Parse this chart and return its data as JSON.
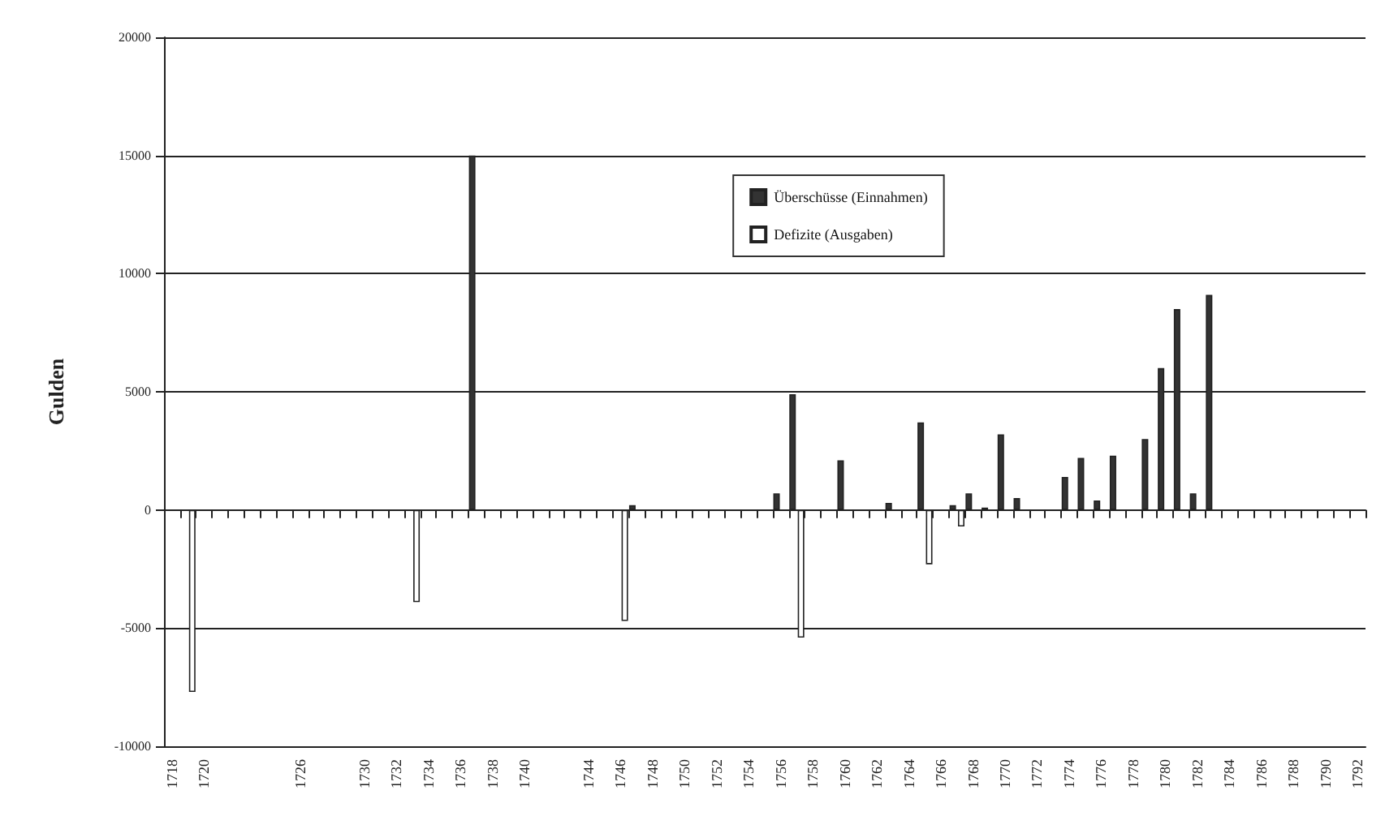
{
  "chart_data": {
    "type": "bar",
    "ylabel": "Gulden",
    "categories": [
      "1718",
      null,
      "1720",
      null,
      null,
      null,
      null,
      null,
      "1726",
      null,
      null,
      null,
      "1730",
      null,
      "1732",
      null,
      "1734",
      null,
      "1736",
      null,
      "1738",
      null,
      "1740",
      null,
      null,
      null,
      "1744",
      null,
      "1746",
      null,
      "1748",
      null,
      "1750",
      null,
      "1752",
      null,
      "1754",
      null,
      "1756",
      null,
      "1758",
      null,
      "1760",
      null,
      "1762",
      null,
      "1764",
      null,
      "1766",
      null,
      "1768",
      null,
      "1770",
      null,
      "1772",
      null,
      "1774",
      null,
      "1776",
      null,
      "1778",
      null,
      "1780",
      null,
      "1782",
      null,
      "1784",
      null,
      "1786",
      null,
      "1788",
      null,
      "1790",
      null,
      "1792"
    ],
    "series": [
      {
        "name": "Überschüsse (Einnahmen)",
        "color": "#333333",
        "values": [
          null,
          null,
          null,
          null,
          null,
          null,
          null,
          null,
          null,
          null,
          null,
          null,
          null,
          null,
          null,
          null,
          null,
          null,
          null,
          15000,
          null,
          null,
          null,
          null,
          null,
          null,
          null,
          null,
          null,
          200,
          null,
          null,
          null,
          null,
          null,
          null,
          null,
          null,
          700,
          4900,
          null,
          null,
          2100,
          null,
          null,
          300,
          null,
          3700,
          null,
          200,
          700,
          100,
          3200,
          500,
          null,
          null,
          1400,
          2200,
          400,
          2300,
          null,
          3000,
          6000,
          8500,
          700,
          9100,
          null,
          null,
          null,
          null,
          null,
          null,
          null,
          null,
          null
        ]
      },
      {
        "name": "Defizite (Ausgaben)",
        "color": "#ffffff",
        "values": [
          null,
          -7700,
          null,
          null,
          null,
          null,
          null,
          null,
          null,
          null,
          null,
          null,
          null,
          null,
          null,
          -3900,
          null,
          null,
          null,
          null,
          null,
          null,
          null,
          null,
          null,
          null,
          null,
          null,
          -4700,
          null,
          null,
          null,
          null,
          null,
          null,
          null,
          null,
          null,
          null,
          -5400,
          null,
          null,
          null,
          null,
          null,
          null,
          null,
          -2300,
          null,
          -700,
          null,
          null,
          null,
          null,
          null,
          null,
          null,
          null,
          null,
          null,
          null,
          null,
          null,
          null,
          null,
          null,
          null,
          null,
          null,
          null,
          null,
          null,
          null,
          null,
          null
        ]
      }
    ],
    "ylim": [
      -10000,
      20000
    ],
    "yticks": [
      -10000,
      -5000,
      0,
      5000,
      10000,
      15000,
      20000
    ],
    "grid": "y",
    "legend": "top right"
  }
}
